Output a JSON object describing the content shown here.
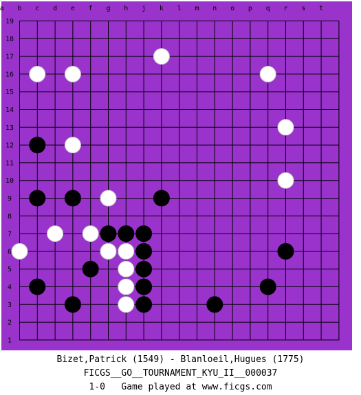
{
  "board": {
    "size": 19,
    "background_color": "#9933cc",
    "line_color": "#000000",
    "columns": [
      "a",
      "b",
      "c",
      "d",
      "e",
      "f",
      "g",
      "h",
      "j",
      "k",
      "l",
      "m",
      "n",
      "o",
      "p",
      "q",
      "r",
      "s",
      "t"
    ],
    "rows": [
      "19",
      "18",
      "17",
      "16",
      "15",
      "14",
      "13",
      "12",
      "11",
      "10",
      "9",
      "8",
      "7",
      "6",
      "5",
      "4",
      "3",
      "2",
      "1"
    ],
    "black_stones": [
      {
        "col": 2,
        "row": 12
      },
      {
        "col": 2,
        "row": 9
      },
      {
        "col": 4,
        "row": 9
      },
      {
        "col": 9,
        "row": 9
      },
      {
        "col": 6,
        "row": 7
      },
      {
        "col": 7,
        "row": 7
      },
      {
        "col": 8,
        "row": 7
      },
      {
        "col": 8,
        "row": 6
      },
      {
        "col": 5,
        "row": 5
      },
      {
        "col": 8,
        "row": 5
      },
      {
        "col": 8,
        "row": 4
      },
      {
        "col": 8,
        "row": 3
      },
      {
        "col": 2,
        "row": 4
      },
      {
        "col": 4,
        "row": 3
      },
      {
        "col": 12,
        "row": 3
      },
      {
        "col": 15,
        "row": 4
      },
      {
        "col": 16,
        "row": 6
      }
    ],
    "white_stones": [
      {
        "col": 9,
        "row": 17
      },
      {
        "col": 2,
        "row": 16
      },
      {
        "col": 4,
        "row": 16
      },
      {
        "col": 15,
        "row": 16
      },
      {
        "col": 16,
        "row": 13
      },
      {
        "col": 4,
        "row": 12
      },
      {
        "col": 16,
        "row": 10
      },
      {
        "col": 6,
        "row": 9
      },
      {
        "col": 3,
        "row": 7
      },
      {
        "col": 5,
        "row": 7
      },
      {
        "col": 1,
        "row": 6
      },
      {
        "col": 6,
        "row": 6
      },
      {
        "col": 7,
        "row": 6
      },
      {
        "col": 7,
        "row": 5
      },
      {
        "col": 7,
        "row": 4
      },
      {
        "col": 7,
        "row": 3
      }
    ]
  },
  "footer": {
    "players": "Bizet,Patrick (1549) - Blanloeil,Hugues (1775)",
    "tournament": "FICGS__GO__TOURNAMENT_KYU_II__000037",
    "result_line": "1-0   Game played at www.ficgs.com"
  }
}
